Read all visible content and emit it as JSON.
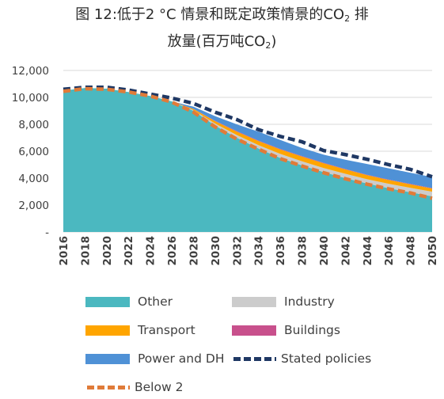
{
  "title": {
    "line1_pre": "图 12:低于2 °C 情景和既定政策情景的CO",
    "line1_sub": "2",
    "line1_post": " 排",
    "line2_pre": "放量(百万吨CO",
    "line2_sub": "2",
    "line2_post": ")"
  },
  "chart_data": {
    "type": "area",
    "stacked": true,
    "x": [
      2016,
      2018,
      2020,
      2022,
      2024,
      2026,
      2028,
      2030,
      2032,
      2034,
      2036,
      2038,
      2040,
      2042,
      2044,
      2046,
      2048,
      2050
    ],
    "x_tick_labels": [
      "2016",
      "2018",
      "2020",
      "2022",
      "2024",
      "2026",
      "2028",
      "2030",
      "2032",
      "2034",
      "2036",
      "2038",
      "2040",
      "2042",
      "2044",
      "2046",
      "2048",
      "2050"
    ],
    "y_tick_labels": [
      "-",
      "2,000",
      "4,000",
      "6,000",
      "8,000",
      "10,000",
      "12,000"
    ],
    "y_ticks": [
      0,
      2000,
      4000,
      6000,
      8000,
      10000,
      12000
    ],
    "ylim": [
      0,
      12000
    ],
    "xlabel": "",
    "ylabel": "",
    "grid": true,
    "legend_position": "bottom",
    "series": [
      {
        "name": "Other",
        "color": "#4bb8c0",
        "values": [
          10500,
          10700,
          10650,
          10400,
          10100,
          9700,
          9000,
          7900,
          7000,
          6200,
          5500,
          4950,
          4450,
          4000,
          3600,
          3250,
          2950,
          2650
        ]
      },
      {
        "name": "Industry",
        "color": "#cccccc",
        "values": [
          0,
          0,
          0,
          0,
          0,
          0,
          50,
          150,
          200,
          250,
          300,
          300,
          300,
          320,
          320,
          330,
          330,
          340
        ]
      },
      {
        "name": "Transport",
        "color": "#ffa500",
        "values": [
          0,
          0,
          0,
          0,
          0,
          0,
          80,
          180,
          250,
          300,
          330,
          350,
          350,
          330,
          300,
          280,
          260,
          240
        ]
      },
      {
        "name": "Buildings",
        "color": "#c8508c",
        "values": [
          0,
          0,
          0,
          0,
          0,
          0,
          10,
          30,
          40,
          40,
          40,
          40,
          40,
          30,
          30,
          30,
          30,
          30
        ]
      },
      {
        "name": "Power and DH",
        "color": "#4f91d6",
        "values": [
          0,
          0,
          0,
          0,
          0,
          0,
          170,
          340,
          500,
          660,
          670,
          600,
          600,
          690,
          800,
          840,
          830,
          820
        ]
      }
    ],
    "lines": [
      {
        "name": "Stated policies",
        "color": "#1f3864",
        "style": "dashed",
        "values": [
          10600,
          10750,
          10750,
          10550,
          10250,
          9950,
          9550,
          8900,
          8350,
          7600,
          7100,
          6700,
          6050,
          5750,
          5400,
          5000,
          4650,
          4100
        ]
      },
      {
        "name": "Below 2",
        "color": "#e07b39",
        "style": "dashed",
        "values": [
          10450,
          10650,
          10600,
          10400,
          10100,
          9650,
          8900,
          7800,
          6900,
          6150,
          5450,
          4900,
          4400,
          3950,
          3550,
          3200,
          2900,
          2500
        ]
      }
    ]
  },
  "legend": {
    "items": [
      {
        "label": "Other",
        "color": "#4bb8c0",
        "kind": "swatch"
      },
      {
        "label": "Industry",
        "color": "#cccccc",
        "kind": "swatch"
      },
      {
        "label": "Transport",
        "color": "#ffa500",
        "kind": "swatch"
      },
      {
        "label": "Buildings",
        "color": "#c8508c",
        "kind": "swatch"
      },
      {
        "label": "Power and DH",
        "color": "#4f91d6",
        "kind": "swatch"
      },
      {
        "label": "Stated policies",
        "color": "#1f3864",
        "kind": "dashed"
      },
      {
        "label": "Below 2",
        "color": "#e07b39",
        "kind": "dashed"
      }
    ]
  }
}
